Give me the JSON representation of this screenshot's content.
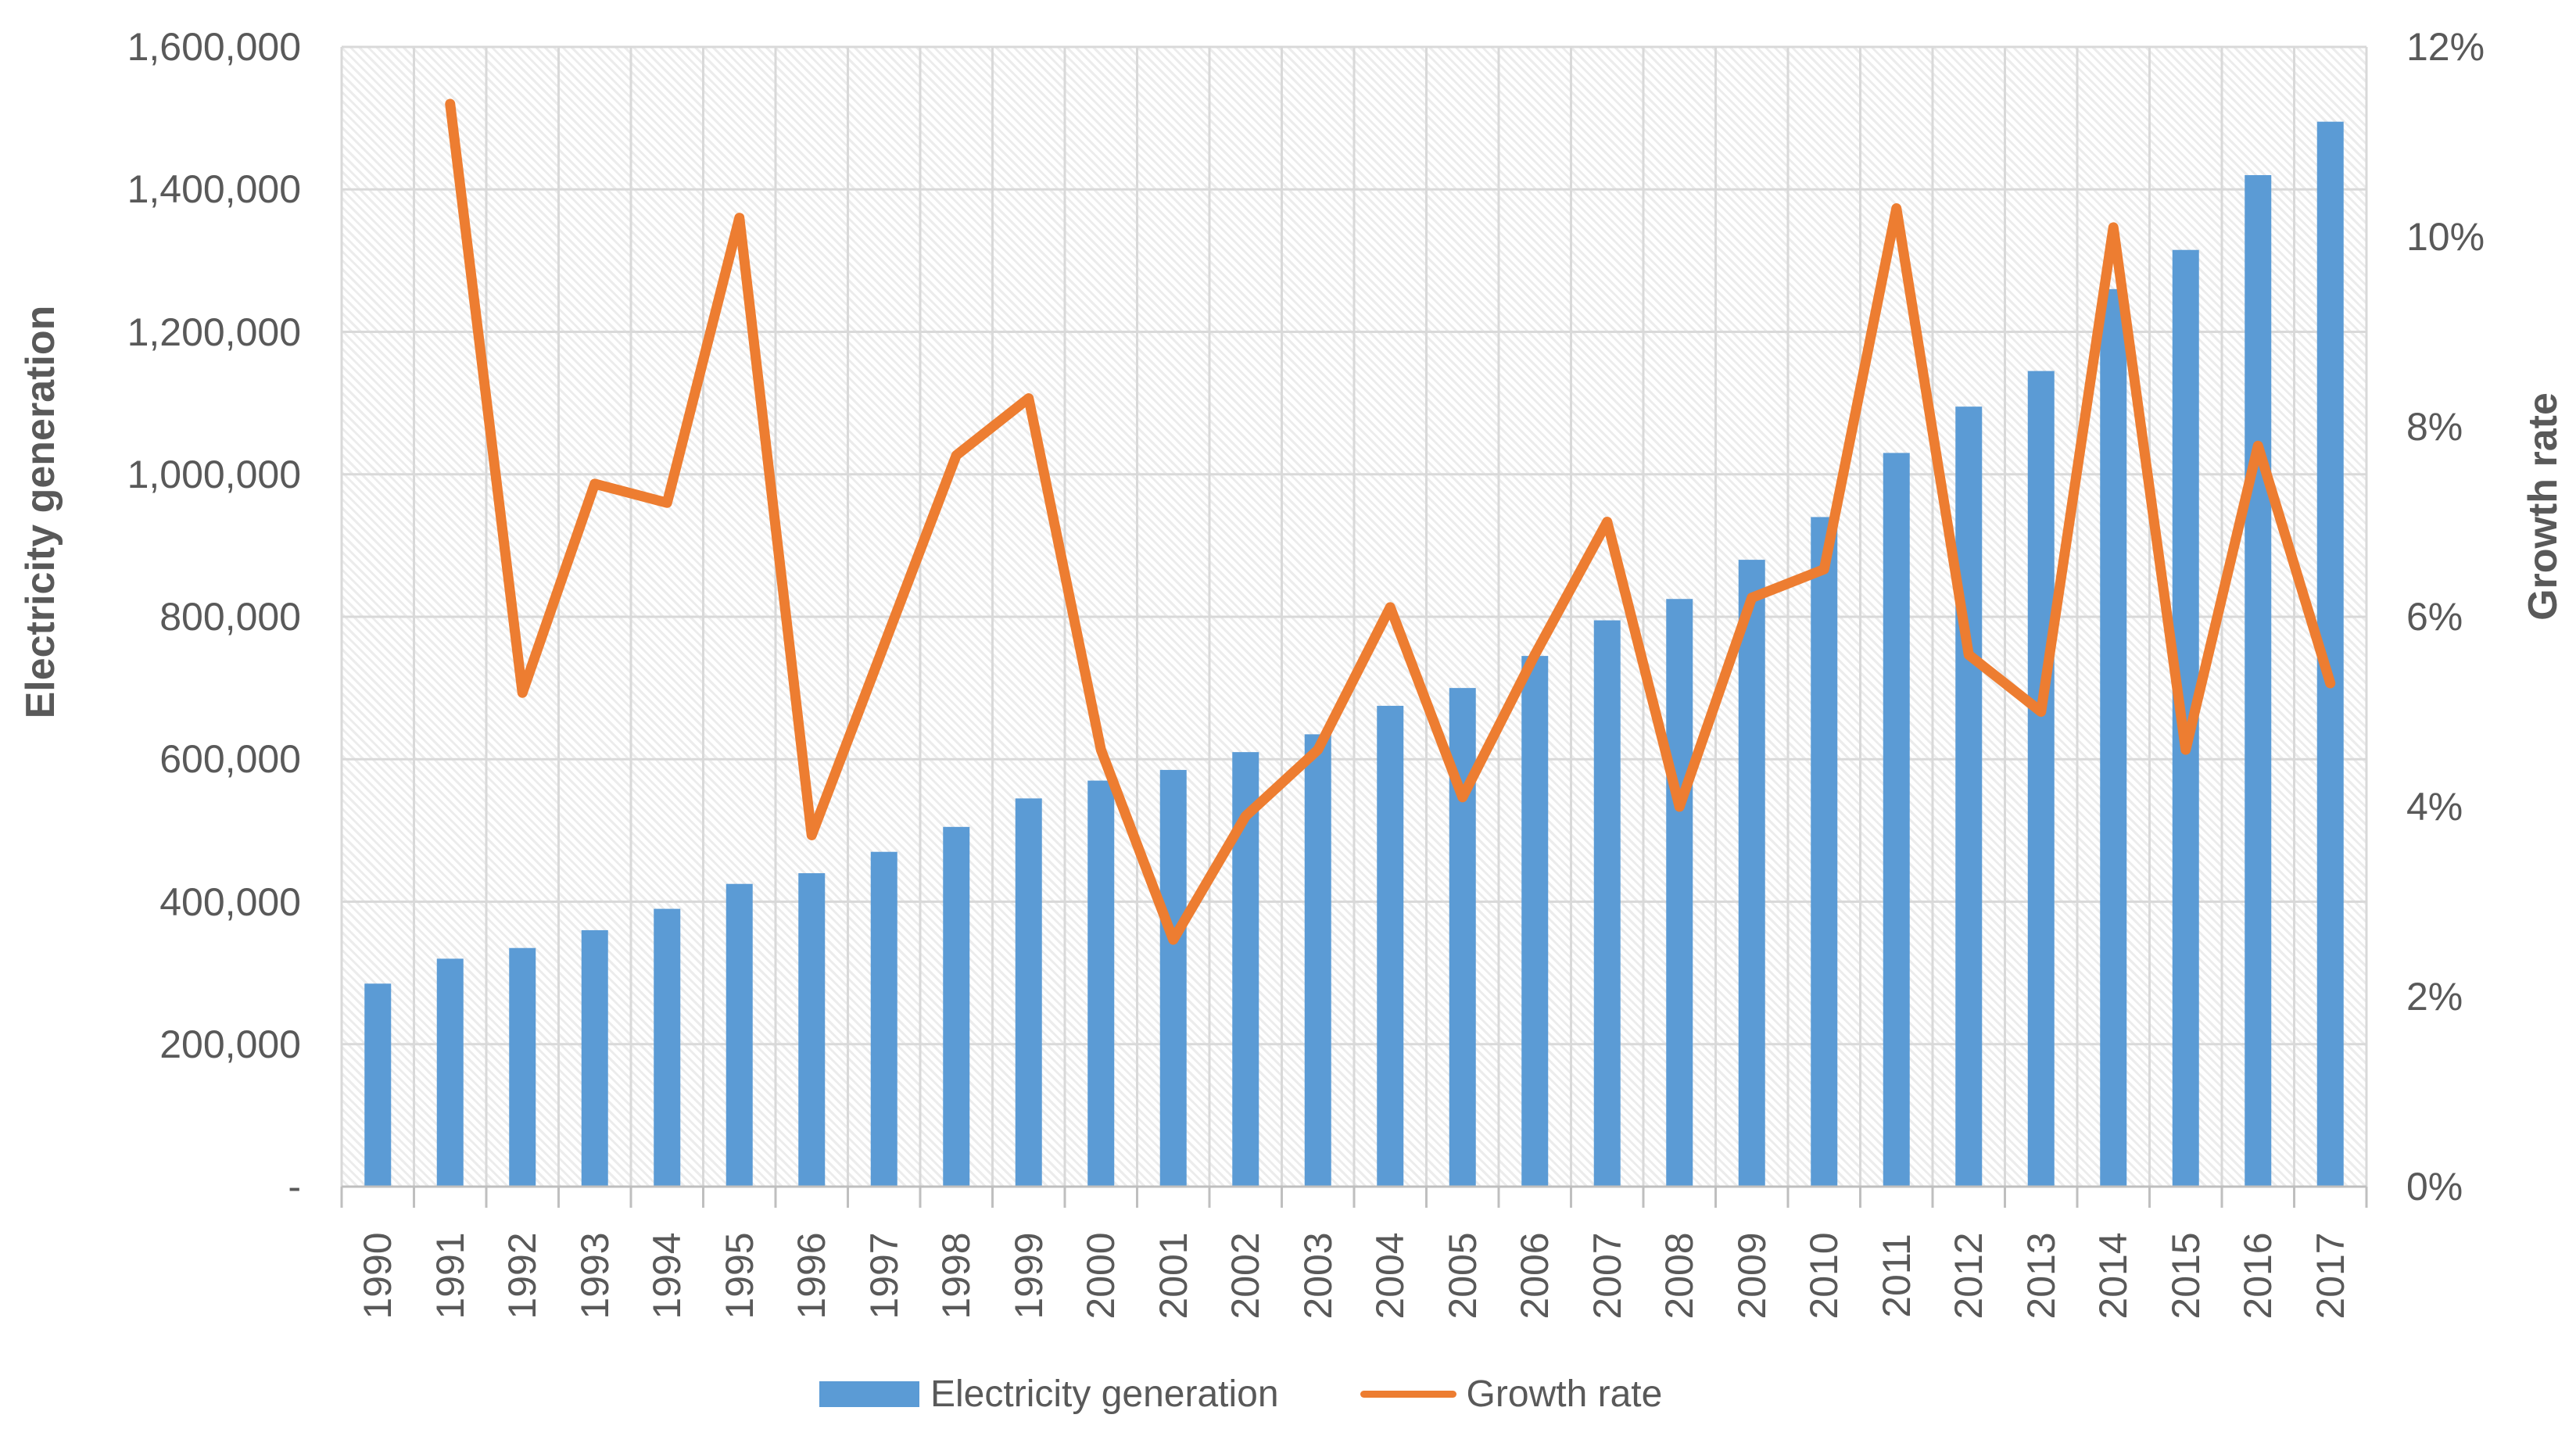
{
  "chart_data": {
    "type": "combo-bar-line",
    "title": "",
    "categories": [
      "1990",
      "1991",
      "1992",
      "1993",
      "1994",
      "1995",
      "1996",
      "1997",
      "1998",
      "1999",
      "2000",
      "2001",
      "2002",
      "2003",
      "2004",
      "2005",
      "2006",
      "2007",
      "2008",
      "2009",
      "2010",
      "2011",
      "2012",
      "2013",
      "2014",
      "2015",
      "2016",
      "2017"
    ],
    "series": [
      {
        "name": "Electricity generation",
        "type": "bar",
        "axis": "left",
        "color": "#5B9BD5",
        "values": [
          285000,
          320000,
          335000,
          360000,
          390000,
          425000,
          440000,
          470000,
          505000,
          545000,
          570000,
          585000,
          610000,
          635000,
          675000,
          700000,
          745000,
          795000,
          825000,
          880000,
          940000,
          1030000,
          1095000,
          1145000,
          1260000,
          1315000,
          1420000,
          1495000
        ]
      },
      {
        "name": "Growth rate",
        "type": "line",
        "axis": "right",
        "color": "#ED7D31",
        "values": [
          null,
          11.4,
          5.2,
          7.4,
          7.2,
          10.2,
          3.7,
          5.7,
          7.7,
          8.3,
          4.6,
          2.6,
          3.9,
          4.6,
          6.1,
          4.1,
          5.6,
          7.0,
          4.0,
          6.2,
          6.5,
          10.3,
          5.6,
          5.0,
          10.1,
          4.6,
          7.8,
          5.3
        ]
      }
    ],
    "left_axis": {
      "title": "Electricity generation",
      "min": 0,
      "max": 1600000,
      "tick_step": 200000,
      "tick_labels": [
        "-",
        "200,000",
        "400,000",
        "600,000",
        "800,000",
        "1,000,000",
        "1,200,000",
        "1,400,000",
        "1,600,000"
      ]
    },
    "right_axis": {
      "title": "Growth rate",
      "min": 0,
      "max": 12,
      "tick_step": 2,
      "tick_labels": [
        "0%",
        "2%",
        "4%",
        "6%",
        "8%",
        "10%",
        "12%"
      ]
    },
    "legend": {
      "position": "bottom",
      "entries": [
        "Electricity generation",
        "Growth rate"
      ]
    },
    "grid": true,
    "grid_color": "#D9D9D9",
    "axis_color": "#BFBFBF",
    "hatch_color": "#ECECEC",
    "text_color": "#595959"
  }
}
